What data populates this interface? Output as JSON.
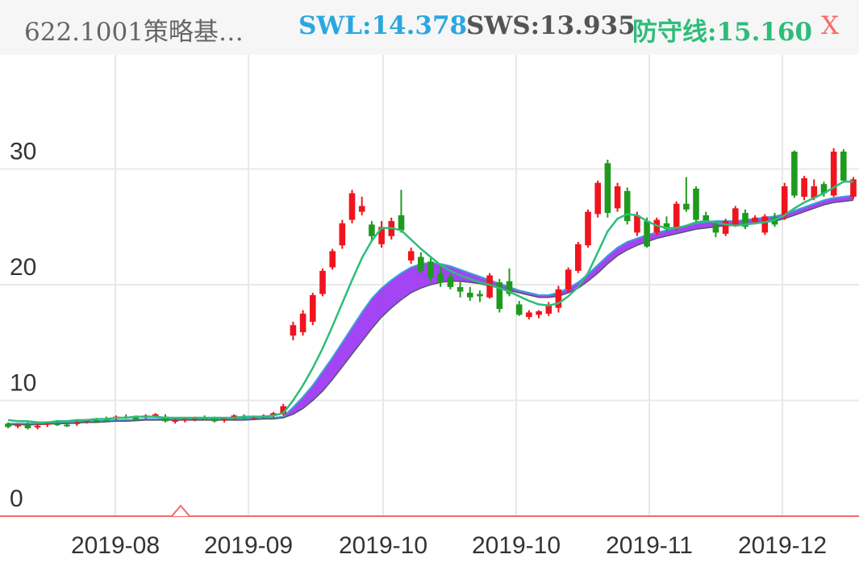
{
  "header": {
    "title": "622.1001策略基…",
    "swl": "SWL:14.378",
    "sws": "SWS:13.935",
    "defense": "防守线:15.160",
    "close": "X"
  },
  "colors": {
    "up": "#f0141e",
    "down": "#1f9a1f",
    "band": "#9b34f4",
    "band_edge_top": "#3aa0d8",
    "line": "#2dbd7a",
    "grid": "#e8e8e8",
    "baseline": "#f26b6b"
  },
  "chart_data": {
    "type": "candlestick",
    "ylim": [
      0,
      35
    ],
    "yticks": [
      "0",
      "10",
      "20",
      "30"
    ],
    "xticks": [
      "2019-08",
      "2019-09",
      "2019-10",
      "2019-10",
      "2019-11",
      "2019-12"
    ],
    "ohlc": [
      [
        8.0,
        8.1,
        7.6,
        7.7
      ],
      [
        7.8,
        8.0,
        7.6,
        7.9
      ],
      [
        7.9,
        8.1,
        7.5,
        7.6
      ],
      [
        7.7,
        8.0,
        7.5,
        7.8
      ],
      [
        7.9,
        8.2,
        7.7,
        8.1
      ],
      [
        8.0,
        8.3,
        7.8,
        7.9
      ],
      [
        7.9,
        8.1,
        7.7,
        7.8
      ],
      [
        8.0,
        8.2,
        7.8,
        8.1
      ],
      [
        8.2,
        8.4,
        8.0,
        8.3
      ],
      [
        8.3,
        8.5,
        8.1,
        8.2
      ],
      [
        8.4,
        8.6,
        8.2,
        8.3
      ],
      [
        8.5,
        8.7,
        8.3,
        8.6
      ],
      [
        8.6,
        8.8,
        8.4,
        8.5
      ],
      [
        8.5,
        8.7,
        8.3,
        8.4
      ],
      [
        8.6,
        8.8,
        8.4,
        8.7
      ],
      [
        8.7,
        8.9,
        8.5,
        8.8
      ],
      [
        8.6,
        8.8,
        8.1,
        8.2
      ],
      [
        8.2,
        8.4,
        8.0,
        8.3
      ],
      [
        8.3,
        8.5,
        8.1,
        8.4
      ],
      [
        8.4,
        8.6,
        8.2,
        8.5
      ],
      [
        8.5,
        8.7,
        8.3,
        8.4
      ],
      [
        8.4,
        8.6,
        8.1,
        8.2
      ],
      [
        8.3,
        8.5,
        8.1,
        8.4
      ],
      [
        8.4,
        8.8,
        8.3,
        8.7
      ],
      [
        8.6,
        8.8,
        8.4,
        8.5
      ],
      [
        8.5,
        8.7,
        8.3,
        8.6
      ],
      [
        8.6,
        8.8,
        8.4,
        8.7
      ],
      [
        8.7,
        9.0,
        8.5,
        8.9
      ],
      [
        8.8,
        9.7,
        8.7,
        9.5
      ],
      [
        15.6,
        16.8,
        15.2,
        16.5
      ],
      [
        15.9,
        17.8,
        15.6,
        17.5
      ],
      [
        16.8,
        19.3,
        16.5,
        19.1
      ],
      [
        19.2,
        21.4,
        19.0,
        21.2
      ],
      [
        21.5,
        23.1,
        21.3,
        22.9
      ],
      [
        23.4,
        25.6,
        23.1,
        25.3
      ],
      [
        25.6,
        28.2,
        25.3,
        27.9
      ],
      [
        26.3,
        27.6,
        26.0,
        26.8
      ],
      [
        25.2,
        25.5,
        23.8,
        24.2
      ],
      [
        23.5,
        25.5,
        23.2,
        25.0
      ],
      [
        24.2,
        25.8,
        23.9,
        25.5
      ],
      [
        26.0,
        28.2,
        24.5,
        24.7
      ],
      [
        22.1,
        23.2,
        21.8,
        22.9
      ],
      [
        22.4,
        22.8,
        21.0,
        21.2
      ],
      [
        22.0,
        22.3,
        20.3,
        20.6
      ],
      [
        21.0,
        21.6,
        19.8,
        20.2
      ],
      [
        20.7,
        21.0,
        19.6,
        19.8
      ],
      [
        19.8,
        20.3,
        18.9,
        19.4
      ],
      [
        19.3,
        19.8,
        18.6,
        18.9
      ],
      [
        19.2,
        19.5,
        18.5,
        19.0
      ],
      [
        18.9,
        21.0,
        18.8,
        20.8
      ],
      [
        20.2,
        20.5,
        17.6,
        17.9
      ],
      [
        20.3,
        21.4,
        19.0,
        19.2
      ],
      [
        18.3,
        18.6,
        17.3,
        17.4
      ],
      [
        17.2,
        17.8,
        17.0,
        17.6
      ],
      [
        17.4,
        17.8,
        17.1,
        17.7
      ],
      [
        17.5,
        18.5,
        17.3,
        18.3
      ],
      [
        18.0,
        19.9,
        17.6,
        19.6
      ],
      [
        19.6,
        21.5,
        19.3,
        21.3
      ],
      [
        21.2,
        23.7,
        21.0,
        23.5
      ],
      [
        23.4,
        26.5,
        23.2,
        26.3
      ],
      [
        26.1,
        29.0,
        25.8,
        28.8
      ],
      [
        30.5,
        30.8,
        25.8,
        26.2
      ],
      [
        26.6,
        28.8,
        26.3,
        28.5
      ],
      [
        28.1,
        28.4,
        25.2,
        25.5
      ],
      [
        24.5,
        26.3,
        24.2,
        26.0
      ],
      [
        25.5,
        25.8,
        23.2,
        23.3
      ],
      [
        24.5,
        25.8,
        24.3,
        25.6
      ],
      [
        25.3,
        25.9,
        24.6,
        24.8
      ],
      [
        24.9,
        27.2,
        24.7,
        27.0
      ],
      [
        27.0,
        29.3,
        26.3,
        26.5
      ],
      [
        28.3,
        28.5,
        25.3,
        25.6
      ],
      [
        26.0,
        26.3,
        25.4,
        25.5
      ],
      [
        25.2,
        25.5,
        24.1,
        24.5
      ],
      [
        24.4,
        25.7,
        24.2,
        25.5
      ],
      [
        25.2,
        26.8,
        25.0,
        26.6
      ],
      [
        26.2,
        26.5,
        24.8,
        25.0
      ],
      [
        25.4,
        26.0,
        25.2,
        25.8
      ],
      [
        24.5,
        26.1,
        24.3,
        25.9
      ],
      [
        25.8,
        26.2,
        25.0,
        25.2
      ],
      [
        25.9,
        28.8,
        25.6,
        28.5
      ],
      [
        31.5,
        31.6,
        27.5,
        27.7
      ],
      [
        27.6,
        29.4,
        27.3,
        29.2
      ],
      [
        27.5,
        29.1,
        27.3,
        28.5
      ],
      [
        28.7,
        28.9,
        27.6,
        27.9
      ],
      [
        27.7,
        31.8,
        27.6,
        31.5
      ],
      [
        31.5,
        31.7,
        28.8,
        29.0
      ],
      [
        27.6,
        29.3,
        27.4,
        29.1
      ]
    ],
    "defense_line": [
      8.3,
      8.2,
      8.2,
      8.1,
      8.1,
      8.2,
      8.2,
      8.3,
      8.3,
      8.4,
      8.4,
      8.5,
      8.5,
      8.6,
      8.6,
      8.6,
      8.5,
      8.5,
      8.5,
      8.5,
      8.5,
      8.5,
      8.5,
      8.5,
      8.6,
      8.6,
      8.6,
      8.7,
      8.9,
      10.0,
      11.3,
      12.8,
      14.5,
      16.4,
      18.4,
      20.4,
      22.3,
      23.8,
      24.9,
      24.9,
      24.7,
      23.9,
      23.1,
      22.4,
      21.7,
      21.2,
      20.8,
      20.5,
      20.2,
      20.0,
      19.7,
      19.4,
      19.0,
      18.6,
      18.3,
      18.2,
      18.4,
      19.0,
      19.8,
      21.0,
      22.8,
      24.6,
      25.7,
      26.1,
      26.0,
      25.5,
      25.1,
      24.9,
      24.9,
      25.1,
      25.4,
      25.5,
      25.4,
      25.2,
      25.1,
      25.2,
      25.3,
      25.4,
      25.6,
      26.0,
      26.6,
      27.1,
      27.5,
      27.9,
      28.4,
      28.9,
      28.9
    ],
    "band_top": [
      8.0,
      8.0,
      8.0,
      8.0,
      8.05,
      8.1,
      8.1,
      8.15,
      8.2,
      8.2,
      8.25,
      8.3,
      8.3,
      8.35,
      8.4,
      8.4,
      8.4,
      8.4,
      8.4,
      8.4,
      8.4,
      8.4,
      8.4,
      8.4,
      8.4,
      8.5,
      8.5,
      8.5,
      8.6,
      9.4,
      10.3,
      11.3,
      12.5,
      13.7,
      15.0,
      16.3,
      17.6,
      18.8,
      19.7,
      20.4,
      21.0,
      21.5,
      21.8,
      21.9,
      21.8,
      21.6,
      21.3,
      21.0,
      20.7,
      20.4,
      20.1,
      19.8,
      19.5,
      19.3,
      19.1,
      19.1,
      19.3,
      19.7,
      20.2,
      20.9,
      21.7,
      22.5,
      23.2,
      23.7,
      24.0,
      24.3,
      24.5,
      24.7,
      24.9,
      25.1,
      25.3,
      25.4,
      25.5,
      25.5,
      25.5,
      25.6,
      25.7,
      25.8,
      25.9,
      26.1,
      26.4,
      26.7,
      27.0,
      27.3,
      27.5,
      27.6,
      27.7
    ],
    "band_bottom": [
      7.9,
      7.9,
      7.9,
      7.9,
      7.95,
      8.0,
      8.0,
      8.05,
      8.1,
      8.1,
      8.15,
      8.2,
      8.2,
      8.25,
      8.3,
      8.3,
      8.3,
      8.3,
      8.3,
      8.3,
      8.3,
      8.3,
      8.3,
      8.3,
      8.3,
      8.35,
      8.4,
      8.4,
      8.5,
      8.8,
      9.3,
      10.0,
      10.8,
      11.8,
      12.9,
      14.0,
      15.1,
      16.2,
      17.2,
      18.0,
      18.7,
      19.3,
      19.7,
      20.0,
      20.2,
      20.3,
      20.3,
      20.2,
      20.1,
      19.9,
      19.7,
      19.5,
      19.3,
      19.1,
      18.9,
      18.9,
      19.0,
      19.3,
      19.7,
      20.3,
      21.0,
      21.8,
      22.5,
      23.0,
      23.4,
      23.7,
      24.0,
      24.2,
      24.4,
      24.6,
      24.8,
      24.9,
      25.0,
      25.1,
      25.1,
      25.2,
      25.3,
      25.4,
      25.5,
      25.7,
      26.0,
      26.3,
      26.6,
      26.9,
      27.1,
      27.2,
      27.3
    ]
  }
}
